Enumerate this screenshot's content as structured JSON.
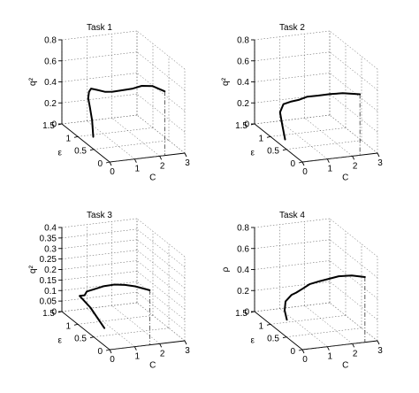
{
  "chart_data": [
    {
      "type": "line3d",
      "title": "Task 1",
      "xlabel": "C",
      "ylabel": "ε",
      "zlabel": "q²",
      "xlim": [
        0,
        3
      ],
      "ylim": [
        0,
        1.5
      ],
      "zlim": [
        0,
        0.8
      ],
      "xticks": [
        "0",
        "1",
        "2",
        "3"
      ],
      "yticks": [
        "0",
        "0.5",
        "1",
        "1.5"
      ],
      "zticks": [
        "0",
        "0.2",
        "0.4",
        "0.6",
        "0.8"
      ],
      "grid": true,
      "projection": {
        "x": 2.2,
        "y": 0.0,
        "z": 0.61
      },
      "series": [
        {
          "points": [
            [
              0.3,
              0.75,
              0.05
            ],
            [
              0.38,
              0.85,
              0.18
            ],
            [
              0.42,
              0.95,
              0.28
            ],
            [
              0.48,
              1.05,
              0.34
            ],
            [
              0.6,
              1.12,
              0.38
            ],
            [
              0.72,
              1.15,
              0.4
            ],
            [
              0.88,
              1.08,
              0.4
            ],
            [
              1.02,
              0.95,
              0.41
            ],
            [
              1.2,
              0.85,
              0.43
            ],
            [
              1.42,
              0.75,
              0.46
            ],
            [
              1.68,
              0.62,
              0.5
            ],
            [
              1.92,
              0.5,
              0.55
            ],
            [
              2.1,
              0.3,
              0.59
            ],
            [
              2.2,
              0.0,
              0.61
            ]
          ]
        }
      ]
    },
    {
      "type": "line3d",
      "title": "Task 2",
      "xlabel": "C",
      "ylabel": "ε",
      "zlabel": "q²",
      "xlim": [
        0,
        3
      ],
      "ylim": [
        0,
        1.5
      ],
      "zlim": [
        0,
        0.8
      ],
      "xticks": [
        "0",
        "1",
        "2",
        "3"
      ],
      "yticks": [
        "0",
        "0.5",
        "1",
        "1.5"
      ],
      "zticks": [
        "0",
        "0.2",
        "0.4",
        "0.6",
        "0.8"
      ],
      "grid": true,
      "projection": {
        "x": 2.3,
        "y": 0.0,
        "z": 0.58
      },
      "series": [
        {
          "points": [
            [
              0.2,
              0.7,
              0.04
            ],
            [
              0.28,
              0.85,
              0.14
            ],
            [
              0.38,
              1.0,
              0.22
            ],
            [
              0.58,
              1.05,
              0.28
            ],
            [
              0.8,
              1.0,
              0.31
            ],
            [
              1.02,
              0.92,
              0.34
            ],
            [
              1.28,
              0.85,
              0.38
            ],
            [
              1.52,
              0.7,
              0.42
            ],
            [
              1.78,
              0.52,
              0.47
            ],
            [
              2.02,
              0.32,
              0.52
            ],
            [
              2.3,
              0.0,
              0.58
            ]
          ]
        }
      ]
    },
    {
      "type": "line3d",
      "title": "Task 3",
      "xlabel": "C",
      "ylabel": "ε",
      "zlabel": "q²",
      "xlim": [
        0,
        3
      ],
      "ylim": [
        0,
        1.5
      ],
      "zlim": [
        0,
        0.4
      ],
      "xticks": [
        "0",
        "1",
        "2",
        "3"
      ],
      "yticks": [
        "0",
        "0.5",
        "1",
        "1.5"
      ],
      "zticks": [
        "0",
        "0.05",
        "0.1",
        "0.15",
        "0.2",
        "0.25",
        "0.3",
        "0.35",
        "0.4"
      ],
      "grid": true,
      "projection": {
        "x": 1.6,
        "y": 0.0,
        "z": 0.26
      },
      "series": [
        {
          "points": [
            [
              0.3,
              0.4,
              0.05
            ],
            [
              0.25,
              0.8,
              0.1
            ],
            [
              0.2,
              1.1,
              0.12
            ],
            [
              0.4,
              1.1,
              0.12
            ],
            [
              0.55,
              1.15,
              0.13
            ],
            [
              0.7,
              1.05,
              0.15
            ],
            [
              0.9,
              0.9,
              0.18
            ],
            [
              1.08,
              0.7,
              0.21
            ],
            [
              1.25,
              0.5,
              0.23
            ],
            [
              1.4,
              0.3,
              0.245
            ],
            [
              1.6,
              0.0,
              0.26
            ]
          ]
        }
      ]
    },
    {
      "type": "line3d",
      "title": "Task 4",
      "xlabel": "C",
      "ylabel": "ε",
      "zlabel": "ρ",
      "xlim": [
        0,
        3
      ],
      "ylim": [
        0,
        1.5
      ],
      "zlim": [
        0,
        0.8
      ],
      "xticks": [
        "0",
        "1",
        "2",
        "3"
      ],
      "yticks": [
        "0",
        "0.5",
        "1",
        "1.5"
      ],
      "zticks": [
        "0",
        "0.2",
        "0.4",
        "0.6",
        "0.8"
      ],
      "grid": true,
      "projection": {
        "x": 2.5,
        "y": 0.0,
        "z": 0.62
      },
      "series": [
        {
          "points": [
            [
              0.4,
              0.8,
              0.08
            ],
            [
              0.5,
              0.95,
              0.13
            ],
            [
              0.6,
              1.0,
              0.2
            ],
            [
              0.78,
              0.95,
              0.27
            ],
            [
              0.9,
              0.9,
              0.3
            ],
            [
              1.05,
              0.8,
              0.36
            ],
            [
              1.18,
              0.7,
              0.42
            ],
            [
              1.4,
              0.55,
              0.48
            ],
            [
              1.65,
              0.45,
              0.52
            ],
            [
              1.9,
              0.35,
              0.56
            ],
            [
              2.2,
              0.18,
              0.6
            ],
            [
              2.5,
              0.0,
              0.62
            ]
          ]
        }
      ]
    }
  ]
}
